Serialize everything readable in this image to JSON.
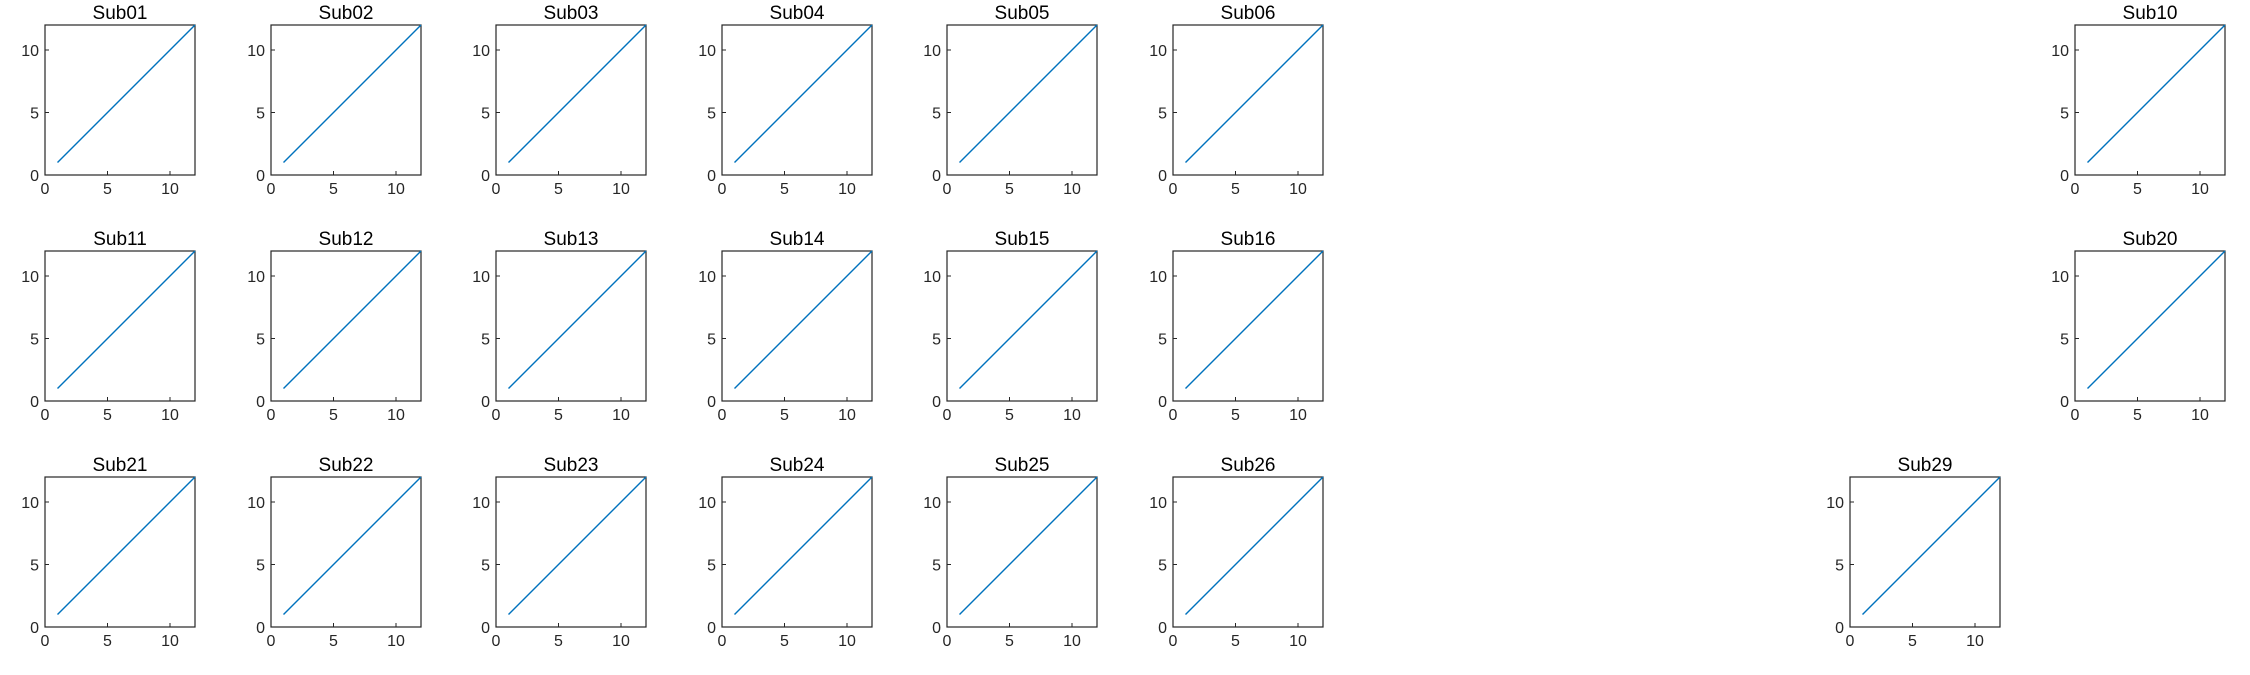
{
  "figure": {
    "background": "#ffffff",
    "axes_color": "#262626",
    "line_color": "#0072BD"
  },
  "chart_data": [
    {
      "type": "line",
      "title": "Sub01",
      "x": [
        1,
        12
      ],
      "y": [
        1,
        12
      ],
      "xlim": [
        0,
        12
      ],
      "ylim": [
        0,
        12
      ],
      "xticks": [
        0,
        5,
        10
      ],
      "yticks": [
        0,
        5,
        10
      ],
      "xlabel": "",
      "ylabel": "",
      "grid": false
    },
    {
      "type": "line",
      "title": "Sub02",
      "x": [
        1,
        12
      ],
      "y": [
        1,
        12
      ],
      "xlim": [
        0,
        12
      ],
      "ylim": [
        0,
        12
      ],
      "xticks": [
        0,
        5,
        10
      ],
      "yticks": [
        0,
        5,
        10
      ],
      "xlabel": "",
      "ylabel": "",
      "grid": false
    },
    {
      "type": "line",
      "title": "Sub03",
      "x": [
        1,
        12
      ],
      "y": [
        1,
        12
      ],
      "xlim": [
        0,
        12
      ],
      "ylim": [
        0,
        12
      ],
      "xticks": [
        0,
        5,
        10
      ],
      "yticks": [
        0,
        5,
        10
      ],
      "xlabel": "",
      "ylabel": "",
      "grid": false
    },
    {
      "type": "line",
      "title": "Sub04",
      "x": [
        1,
        12
      ],
      "y": [
        1,
        12
      ],
      "xlim": [
        0,
        12
      ],
      "ylim": [
        0,
        12
      ],
      "xticks": [
        0,
        5,
        10
      ],
      "yticks": [
        0,
        5,
        10
      ],
      "xlabel": "",
      "ylabel": "",
      "grid": false
    },
    {
      "type": "line",
      "title": "Sub05",
      "x": [
        1,
        12
      ],
      "y": [
        1,
        12
      ],
      "xlim": [
        0,
        12
      ],
      "ylim": [
        0,
        12
      ],
      "xticks": [
        0,
        5,
        10
      ],
      "yticks": [
        0,
        5,
        10
      ],
      "xlabel": "",
      "ylabel": "",
      "grid": false
    },
    {
      "type": "line",
      "title": "Sub06",
      "x": [
        1,
        12
      ],
      "y": [
        1,
        12
      ],
      "xlim": [
        0,
        12
      ],
      "ylim": [
        0,
        12
      ],
      "xticks": [
        0,
        5,
        10
      ],
      "yticks": [
        0,
        5,
        10
      ],
      "xlabel": "",
      "ylabel": "",
      "grid": false
    },
    {
      "type": "line",
      "title": "Sub10",
      "x": [
        1,
        12
      ],
      "y": [
        1,
        12
      ],
      "xlim": [
        0,
        12
      ],
      "ylim": [
        0,
        12
      ],
      "xticks": [
        0,
        5,
        10
      ],
      "yticks": [
        0,
        5,
        10
      ],
      "xlabel": "",
      "ylabel": "",
      "grid": false
    },
    {
      "type": "line",
      "title": "Sub11",
      "x": [
        1,
        12
      ],
      "y": [
        1,
        12
      ],
      "xlim": [
        0,
        12
      ],
      "ylim": [
        0,
        12
      ],
      "xticks": [
        0,
        5,
        10
      ],
      "yticks": [
        0,
        5,
        10
      ],
      "xlabel": "",
      "ylabel": "",
      "grid": false
    },
    {
      "type": "line",
      "title": "Sub12",
      "x": [
        1,
        12
      ],
      "y": [
        1,
        12
      ],
      "xlim": [
        0,
        12
      ],
      "ylim": [
        0,
        12
      ],
      "xticks": [
        0,
        5,
        10
      ],
      "yticks": [
        0,
        5,
        10
      ],
      "xlabel": "",
      "ylabel": "",
      "grid": false
    },
    {
      "type": "line",
      "title": "Sub13",
      "x": [
        1,
        12
      ],
      "y": [
        1,
        12
      ],
      "xlim": [
        0,
        12
      ],
      "ylim": [
        0,
        12
      ],
      "xticks": [
        0,
        5,
        10
      ],
      "yticks": [
        0,
        5,
        10
      ],
      "xlabel": "",
      "ylabel": "",
      "grid": false
    },
    {
      "type": "line",
      "title": "Sub14",
      "x": [
        1,
        12
      ],
      "y": [
        1,
        12
      ],
      "xlim": [
        0,
        12
      ],
      "ylim": [
        0,
        12
      ],
      "xticks": [
        0,
        5,
        10
      ],
      "yticks": [
        0,
        5,
        10
      ],
      "xlabel": "",
      "ylabel": "",
      "grid": false
    },
    {
      "type": "line",
      "title": "Sub15",
      "x": [
        1,
        12
      ],
      "y": [
        1,
        12
      ],
      "xlim": [
        0,
        12
      ],
      "ylim": [
        0,
        12
      ],
      "xticks": [
        0,
        5,
        10
      ],
      "yticks": [
        0,
        5,
        10
      ],
      "xlabel": "",
      "ylabel": "",
      "grid": false
    },
    {
      "type": "line",
      "title": "Sub16",
      "x": [
        1,
        12
      ],
      "y": [
        1,
        12
      ],
      "xlim": [
        0,
        12
      ],
      "ylim": [
        0,
        12
      ],
      "xticks": [
        0,
        5,
        10
      ],
      "yticks": [
        0,
        5,
        10
      ],
      "xlabel": "",
      "ylabel": "",
      "grid": false
    },
    {
      "type": "line",
      "title": "Sub20",
      "x": [
        1,
        12
      ],
      "y": [
        1,
        12
      ],
      "xlim": [
        0,
        12
      ],
      "ylim": [
        0,
        12
      ],
      "xticks": [
        0,
        5,
        10
      ],
      "yticks": [
        0,
        5,
        10
      ],
      "xlabel": "",
      "ylabel": "",
      "grid": false
    },
    {
      "type": "line",
      "title": "Sub21",
      "x": [
        1,
        12
      ],
      "y": [
        1,
        12
      ],
      "xlim": [
        0,
        12
      ],
      "ylim": [
        0,
        12
      ],
      "xticks": [
        0,
        5,
        10
      ],
      "yticks": [
        0,
        5,
        10
      ],
      "xlabel": "",
      "ylabel": "",
      "grid": false
    },
    {
      "type": "line",
      "title": "Sub22",
      "x": [
        1,
        12
      ],
      "y": [
        1,
        12
      ],
      "xlim": [
        0,
        12
      ],
      "ylim": [
        0,
        12
      ],
      "xticks": [
        0,
        5,
        10
      ],
      "yticks": [
        0,
        5,
        10
      ],
      "xlabel": "",
      "ylabel": "",
      "grid": false
    },
    {
      "type": "line",
      "title": "Sub23",
      "x": [
        1,
        12
      ],
      "y": [
        1,
        12
      ],
      "xlim": [
        0,
        12
      ],
      "ylim": [
        0,
        12
      ],
      "xticks": [
        0,
        5,
        10
      ],
      "yticks": [
        0,
        5,
        10
      ],
      "xlabel": "",
      "ylabel": "",
      "grid": false
    },
    {
      "type": "line",
      "title": "Sub24",
      "x": [
        1,
        12
      ],
      "y": [
        1,
        12
      ],
      "xlim": [
        0,
        12
      ],
      "ylim": [
        0,
        12
      ],
      "xticks": [
        0,
        5,
        10
      ],
      "yticks": [
        0,
        5,
        10
      ],
      "xlabel": "",
      "ylabel": "",
      "grid": false
    },
    {
      "type": "line",
      "title": "Sub25",
      "x": [
        1,
        12
      ],
      "y": [
        1,
        12
      ],
      "xlim": [
        0,
        12
      ],
      "ylim": [
        0,
        12
      ],
      "xticks": [
        0,
        5,
        10
      ],
      "yticks": [
        0,
        5,
        10
      ],
      "xlabel": "",
      "ylabel": "",
      "grid": false
    },
    {
      "type": "line",
      "title": "Sub26",
      "x": [
        1,
        12
      ],
      "y": [
        1,
        12
      ],
      "xlim": [
        0,
        12
      ],
      "ylim": [
        0,
        12
      ],
      "xticks": [
        0,
        5,
        10
      ],
      "yticks": [
        0,
        5,
        10
      ],
      "xlabel": "",
      "ylabel": "",
      "grid": false
    },
    {
      "type": "line",
      "title": "Sub29",
      "x": [
        1,
        12
      ],
      "y": [
        1,
        12
      ],
      "xlim": [
        0,
        12
      ],
      "ylim": [
        0,
        12
      ],
      "xticks": [
        0,
        5,
        10
      ],
      "yticks": [
        0,
        5,
        10
      ],
      "xlabel": "",
      "ylabel": "",
      "grid": false
    }
  ]
}
